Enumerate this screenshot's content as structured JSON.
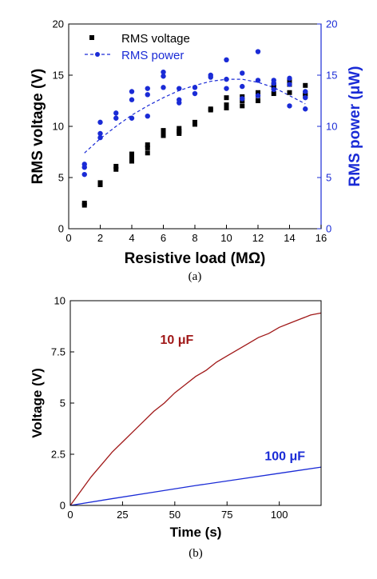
{
  "chart_data": [
    {
      "type": "scatter",
      "panel_caption": "(a)",
      "xlabel": "Resistive load (MΩ)",
      "ylabel": "RMS voltage (V)",
      "y2label": "RMS power (μW)",
      "xlim": [
        0,
        16
      ],
      "ylim": [
        0,
        20
      ],
      "y2lim": [
        0,
        20
      ],
      "xticks": [
        0,
        2,
        4,
        6,
        8,
        10,
        12,
        14,
        16
      ],
      "yticks": [
        0,
        5,
        10,
        15,
        20
      ],
      "y2ticks": [
        0,
        5,
        10,
        15,
        20
      ],
      "legend_position": "top-left",
      "series": [
        {
          "name": "RMS voltage",
          "axis": "left",
          "color": "#000000",
          "marker": "square",
          "points": [
            [
              1,
              2.3
            ],
            [
              1,
              2.5
            ],
            [
              2,
              4.3
            ],
            [
              2,
              4.5
            ],
            [
              3,
              5.8
            ],
            [
              3,
              6.1
            ],
            [
              4,
              6.6
            ],
            [
              4,
              7.0
            ],
            [
              4,
              7.3
            ],
            [
              5,
              7.4
            ],
            [
              5,
              7.9
            ],
            [
              5,
              8.2
            ],
            [
              6,
              9.1
            ],
            [
              6,
              9.4
            ],
            [
              6,
              9.6
            ],
            [
              7,
              9.3
            ],
            [
              7,
              9.5
            ],
            [
              7,
              9.8
            ],
            [
              8,
              10.2
            ],
            [
              8,
              10.4
            ],
            [
              9,
              11.6
            ],
            [
              9,
              11.7
            ],
            [
              10,
              11.8
            ],
            [
              10,
              12.1
            ],
            [
              10,
              12.8
            ],
            [
              11,
              12.0
            ],
            [
              11,
              12.5
            ],
            [
              11,
              12.9
            ],
            [
              12,
              12.5
            ],
            [
              12,
              13.0
            ],
            [
              12,
              13.3
            ],
            [
              13,
              13.2
            ],
            [
              13,
              13.8
            ],
            [
              13,
              14.1
            ],
            [
              14,
              13.3
            ],
            [
              14,
              14.1
            ],
            [
              14,
              14.5
            ],
            [
              15,
              13.0
            ],
            [
              15,
              13.2
            ],
            [
              15,
              14.0
            ]
          ]
        },
        {
          "name": "RMS power",
          "axis": "right",
          "color": "#1a2bd6",
          "marker": "circle",
          "points": [
            [
              1,
              5.3
            ],
            [
              1,
              6.0
            ],
            [
              1,
              6.3
            ],
            [
              2,
              8.9
            ],
            [
              2,
              9.3
            ],
            [
              2,
              10.4
            ],
            [
              3,
              10.8
            ],
            [
              3,
              11.3
            ],
            [
              4,
              10.8
            ],
            [
              4,
              12.6
            ],
            [
              4,
              13.4
            ],
            [
              5,
              11.0
            ],
            [
              5,
              13.1
            ],
            [
              5,
              13.7
            ],
            [
              6,
              13.8
            ],
            [
              6,
              14.9
            ],
            [
              6,
              15.3
            ],
            [
              7,
              12.3
            ],
            [
              7,
              12.6
            ],
            [
              7,
              13.7
            ],
            [
              8,
              13.2
            ],
            [
              8,
              13.8
            ],
            [
              9,
              14.8
            ],
            [
              9,
              15.0
            ],
            [
              10,
              13.7
            ],
            [
              10,
              14.6
            ],
            [
              10,
              16.5
            ],
            [
              11,
              12.7
            ],
            [
              11,
              13.9
            ],
            [
              11,
              15.2
            ],
            [
              12,
              13.0
            ],
            [
              12,
              14.5
            ],
            [
              12,
              17.3
            ],
            [
              13,
              13.6
            ],
            [
              13,
              14.2
            ],
            [
              13,
              14.5
            ],
            [
              14,
              12.0
            ],
            [
              14,
              14.1
            ],
            [
              14,
              14.7
            ],
            [
              15,
              11.7
            ],
            [
              15,
              12.8
            ],
            [
              15,
              13.4
            ]
          ],
          "fit_curve": {
            "style": "dashed",
            "x": [
              1,
              2,
              3,
              4,
              5,
              6,
              7,
              8,
              9,
              10,
              11,
              12,
              13,
              14,
              15
            ],
            "y": [
              7.4,
              8.8,
              10.0,
              11.1,
              12.0,
              12.8,
              13.5,
              14.0,
              14.4,
              14.6,
              14.6,
              14.3,
              13.8,
              13.0,
              12.2
            ]
          }
        }
      ]
    },
    {
      "type": "line",
      "panel_caption": "(b)",
      "xlabel": "Time (s)",
      "ylabel": "Voltage (V)",
      "xlim": [
        0,
        120
      ],
      "ylim": [
        0,
        10
      ],
      "xticks": [
        0,
        25,
        50,
        75,
        100
      ],
      "xtick_labels": [
        "0",
        "25",
        "50",
        "75",
        "100"
      ],
      "yticks": [
        0,
        2.5,
        5,
        7.5,
        10
      ],
      "ytick_labels": [
        "0",
        "2.5",
        "5",
        "7.5",
        "10"
      ],
      "series": [
        {
          "name": "10 μF",
          "color": "#a01818",
          "x": [
            0,
            5,
            10,
            15,
            20,
            25,
            30,
            35,
            40,
            45,
            50,
            55,
            60,
            65,
            70,
            75,
            80,
            85,
            90,
            95,
            100,
            105,
            110,
            115,
            120
          ],
          "y": [
            0,
            0.7,
            1.4,
            2.0,
            2.6,
            3.1,
            3.6,
            4.1,
            4.6,
            5.0,
            5.5,
            5.9,
            6.3,
            6.6,
            7.0,
            7.3,
            7.6,
            7.9,
            8.2,
            8.4,
            8.7,
            8.9,
            9.1,
            9.3,
            9.4
          ],
          "label_at": [
            43,
            7.9
          ]
        },
        {
          "name": "100 μF",
          "color": "#1a2bd6",
          "x": [
            0,
            20,
            40,
            60,
            80,
            100,
            120
          ],
          "y": [
            0,
            0.33,
            0.65,
            0.97,
            1.27,
            1.57,
            1.87
          ],
          "label_at": [
            93,
            2.2
          ]
        }
      ]
    }
  ]
}
